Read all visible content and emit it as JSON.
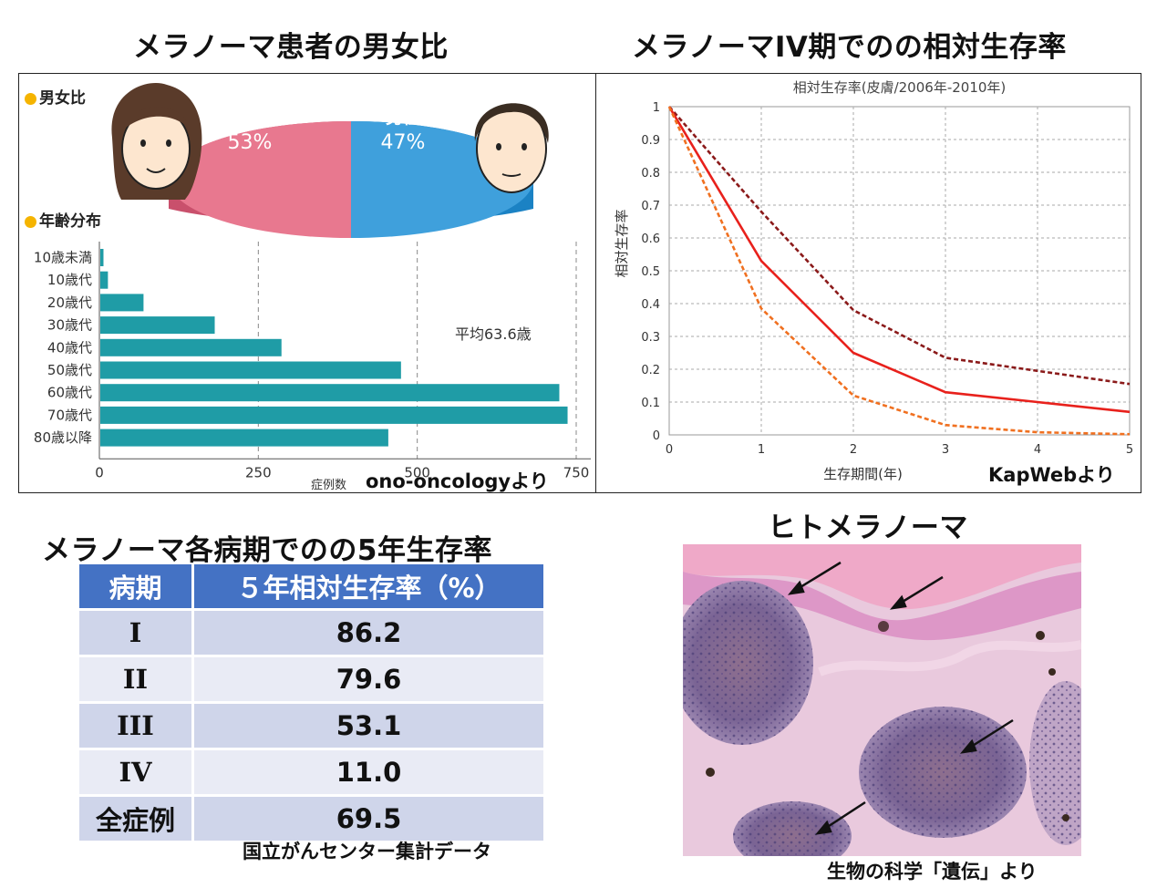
{
  "titles": {
    "sex_ratio": "メラノーマ患者の男女比",
    "survival_iv": "メラノーマIV期でのの相対生存率",
    "stage_table": "メラノーマ各病期でのの5年生存率",
    "histology": "ヒトメラノーマ"
  },
  "sources": {
    "ono": "ono-oncologyより",
    "kapweb": "KapWebより",
    "ncc": "国立がんセンター集計データ",
    "bio": "生物の科学「遺伝」より"
  },
  "sex_panel": {
    "heading": "男女比",
    "female_label": "女性",
    "female_pct": "53%",
    "male_label": "男性",
    "male_pct": "47%"
  },
  "age_panel": {
    "heading": "年齢分布",
    "mean_note": "平均63.6歳",
    "axis_title": "症例数"
  },
  "stage_table": {
    "headers": [
      "病期",
      "５年相対生存率（%）"
    ],
    "rows": [
      {
        "stage": "I",
        "rate": "86.2"
      },
      {
        "stage": "II",
        "rate": "79.6"
      },
      {
        "stage": "III",
        "rate": "53.1"
      },
      {
        "stage": "IV",
        "rate": "11.0"
      },
      {
        "stage": "全症例",
        "rate": "69.5"
      }
    ]
  },
  "colors": {
    "female": "#e8788f",
    "male": "#3fa0dc",
    "bars": "#1f9ca6",
    "line_main": "#e8211c",
    "line_upper": "#8b1a1a",
    "line_lower": "#f07020",
    "table_header": "#4472c4"
  },
  "chart_data": [
    {
      "type": "pie",
      "categories": [
        "女性",
        "男性"
      ],
      "values": [
        53,
        47
      ]
    },
    {
      "type": "bar",
      "categories": [
        "10歳未満",
        "10歳代",
        "20歳代",
        "30歳代",
        "40歳代",
        "50歳代",
        "60歳代",
        "70歳代",
        "80歳以降"
      ],
      "values": [
        5,
        12,
        68,
        180,
        285,
        473,
        722,
        735,
        453
      ],
      "xlabel": "症例数",
      "xlim": [
        0,
        750
      ],
      "xticks": [
        0,
        250,
        500,
        750
      ],
      "grid": "vertical dashed",
      "annotations": [
        "平均63.6歳"
      ]
    },
    {
      "type": "line",
      "title": "相対生存率(皮膚/2006年-2010年)",
      "xlabel": "生存期間(年)",
      "ylabel": "相対生存率",
      "x": [
        0,
        1,
        2,
        3,
        4,
        5
      ],
      "xlim": [
        0,
        5
      ],
      "ylim": [
        0,
        1
      ],
      "yticks": [
        0,
        0.1,
        0.2,
        0.3,
        0.4,
        0.5,
        0.6,
        0.7,
        0.8,
        0.9,
        1
      ],
      "grid": true,
      "series": [
        {
          "style": "dotted",
          "color": "#8b1a1a",
          "values": [
            1,
            0.68,
            0.38,
            0.235,
            0.195,
            0.155
          ]
        },
        {
          "style": "solid",
          "color": "#e8211c",
          "values": [
            1,
            0.53,
            0.25,
            0.13,
            0.1,
            0.07
          ]
        },
        {
          "style": "dotted",
          "color": "#f07020",
          "values": [
            1,
            0.385,
            0.12,
            0.03,
            0.008,
            0.002
          ]
        }
      ]
    }
  ]
}
